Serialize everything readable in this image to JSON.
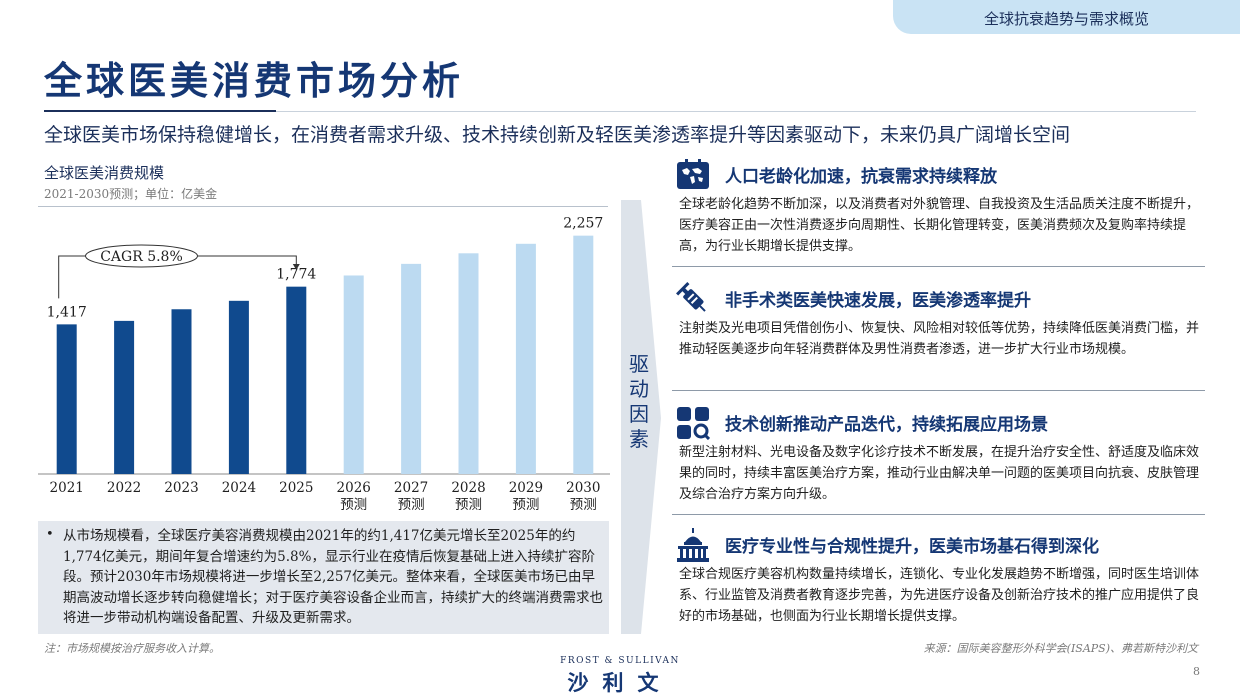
{
  "header": {
    "section_tab": "全球抗衰趋势与需求概览",
    "title": "全球医美消费市场分析",
    "subtitle": "全球医美市场保持稳健增长，在消费者需求升级、技术持续创新及轻医美渗透率提升等因素驱动下，未来仍具广阔增长空间"
  },
  "chart_title": "全球医美消费规模",
  "chart_note": "2021-2030预测；单位：亿美金",
  "chart_data": {
    "type": "bar",
    "categories": [
      "2021",
      "2022",
      "2023",
      "2024",
      "2025",
      "2026\n预测",
      "2027\n预测",
      "2028\n预测",
      "2029\n预测",
      "2030\n预测"
    ],
    "values": [
      1417,
      1450,
      1560,
      1640,
      1774,
      1880,
      1990,
      2090,
      2180,
      2257
    ],
    "labeled_values": {
      "2021": "1,417",
      "2025": "1,774",
      "2030\n预测": "2,257"
    },
    "actual_color": "#104a8e",
    "forecast_color": "#bcdaf1",
    "forecast_from_index": 5,
    "annotation": "CAGR 5.8%",
    "ylim": [
      0,
      2500
    ],
    "grid": false,
    "legend": "none"
  },
  "bullet": "从市场规模看，全球医疗美容消费规模由2021年的约1,417亿美元增长至2025年的约1,774亿美元，期间年复合增速约为5.8%，显示行业在疫情后恢复基础上进入持续扩容阶段。预计2030年市场规模将进一步增长至2,257亿美元。整体来看，全球医美市场已由早期高波动增长逐步转向稳健增长；对于医疗美容设备企业而言，持续扩大的终端消费需求也将进一步带动机构端设备配置、升级及更新需求。",
  "driver_label": "驱动因素",
  "factors": [
    {
      "icon": "world-map-icon",
      "heading": "人口老龄化加速，抗衰需求持续释放",
      "body": "全球老龄化趋势不断加深，以及消费者对外貌管理、自我投资及生活品质关注度不断提升，医疗美容正由一次性消费逐步向周期性、长期化管理转变，医美消费频次及复购率持续提高，为行业长期增长提供支撑。"
    },
    {
      "icon": "syringe-icon",
      "heading": "非手术类医美快速发展，医美渗透率提升",
      "body": "注射类及光电项目凭借创伤小、恢复快、风险相对较低等优势，持续降低医美消费门槛，并推动轻医美逐步向年轻消费群体及男性消费者渗透，进一步扩大行业市场规模。"
    },
    {
      "icon": "apps-search-icon",
      "heading": "技术创新推动产品迭代，持续拓展应用场景",
      "body": "新型注射材料、光电设备及数字化诊疗技术不断发展，在提升治疗安全性、舒适度及临床效果的同时，持续丰富医美治疗方案，推动行业由解决单一问题的医美项目向抗衰、皮肤管理及综合治疗方案方向升级。"
    },
    {
      "icon": "capitol-building-icon",
      "heading": "医疗专业性与合规性提升，医美市场基石得到深化",
      "body": "全球合规医疗美容机构数量持续增长，连锁化、专业化发展趋势不断增强，同时医生培训体系、行业监管及消费者教育逐步完善，为先进医疗设备及创新治疗技术的推广应用提供了良好的市场基础，也侧面为行业长期增长提供支撑。"
    }
  ],
  "footnote": "注：市场规模按治疗服务收入计算。",
  "source": "来源：国际美容整形外科学会(ISAPS)、弗若斯特沙利文",
  "page_number": "8",
  "logo": {
    "top": "FROST & SULLIVAN",
    "bottom": "沙利文"
  }
}
